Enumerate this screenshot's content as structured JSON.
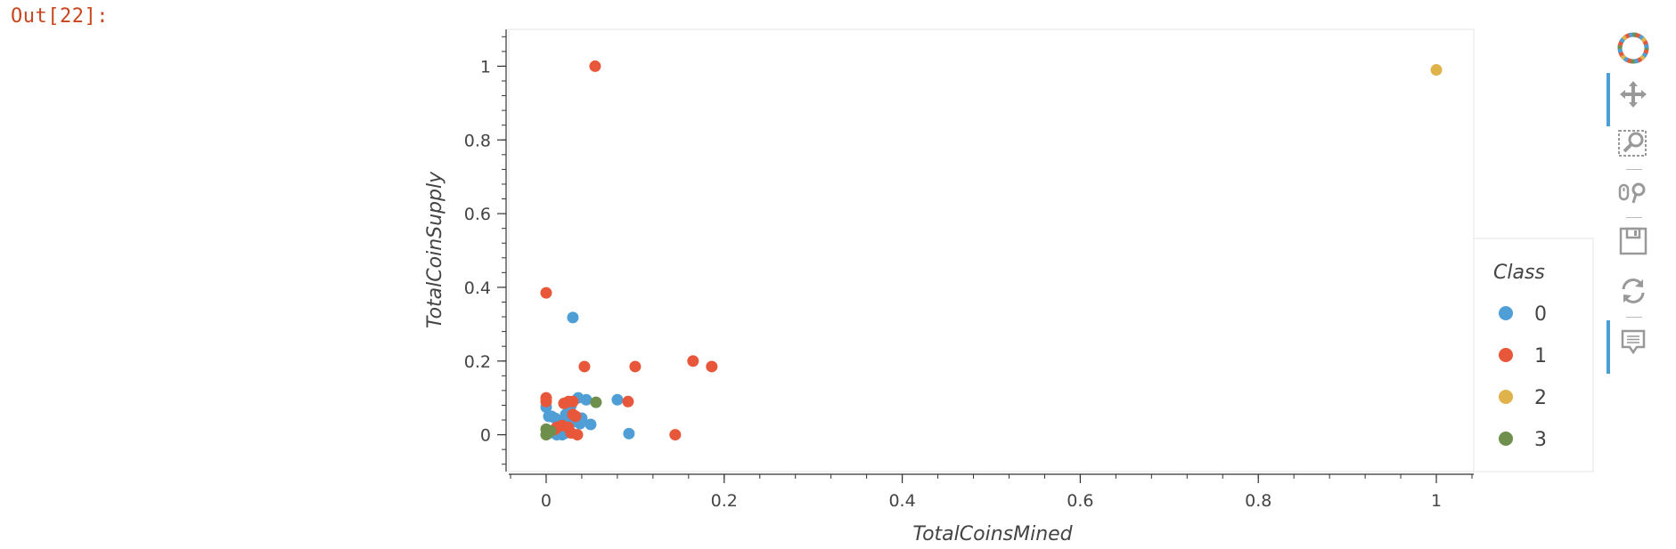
{
  "cell": {
    "prompt": "Out[22]:"
  },
  "toolbar": {
    "tools": [
      {
        "name": "bokeh-logo-icon",
        "active": false
      },
      {
        "name": "pan-icon",
        "active": true
      },
      {
        "name": "box-zoom-icon",
        "active": false
      },
      {
        "name": "wheel-zoom-icon",
        "active": false
      },
      {
        "name": "save-icon",
        "active": false
      },
      {
        "name": "reset-icon",
        "active": false
      },
      {
        "name": "hover-icon",
        "active": true
      }
    ]
  },
  "chart_data": {
    "type": "scatter",
    "xlabel": "TotalCoinsMined",
    "ylabel": "TotalCoinSupply",
    "xlim": [
      -0.042,
      1.042
    ],
    "ylim": [
      -0.1,
      1.1
    ],
    "xticks": [
      0,
      0.2,
      0.4,
      0.6,
      0.8,
      1
    ],
    "yticks": [
      0,
      0.2,
      0.4,
      0.6,
      0.8,
      1
    ],
    "xtick_labels": [
      "0",
      "0.2",
      "0.4",
      "0.6",
      "0.8",
      "1"
    ],
    "ytick_labels": [
      "0",
      "0.2",
      "0.4",
      "0.6",
      "0.8",
      "1"
    ],
    "grid": false,
    "legend": {
      "title": "Class",
      "placement": "right"
    },
    "series": [
      {
        "name": "0",
        "color": "#4f9fd6",
        "x": [
          0.0,
          0.003,
          0.006,
          0.01,
          0.013,
          0.016,
          0.02,
          0.022,
          0.025,
          0.028,
          0.03,
          0.033,
          0.036,
          0.04,
          0.045,
          0.05,
          0.08,
          0.093,
          0.03,
          0.004,
          0.012,
          0.018,
          0.03,
          0.038,
          0.01,
          0.022
        ],
        "y": [
          0.075,
          0.05,
          0.05,
          0.045,
          0.02,
          0.03,
          0.04,
          0.055,
          0.06,
          0.08,
          0.09,
          0.05,
          0.1,
          0.045,
          0.095,
          0.028,
          0.095,
          0.003,
          0.318,
          0.005,
          0.0,
          0.0,
          0.035,
          0.03,
          0.015,
          0.005
        ]
      },
      {
        "name": "1",
        "color": "#e8573a",
        "x": [
          0.055,
          0.0,
          0.043,
          0.1,
          0.165,
          0.186,
          0.0,
          0.0,
          0.02,
          0.025,
          0.03,
          0.033,
          0.092,
          0.145,
          0.012,
          0.018,
          0.025,
          0.03,
          0.035,
          0.005,
          0.01,
          0.028
        ],
        "y": [
          1.0,
          0.385,
          0.185,
          0.185,
          0.2,
          0.185,
          0.1,
          0.09,
          0.085,
          0.09,
          0.09,
          0.05,
          0.09,
          0.0,
          0.02,
          0.025,
          0.02,
          0.055,
          0.0,
          0.01,
          0.015,
          0.005
        ]
      },
      {
        "name": "2",
        "color": "#e0b24a",
        "x": [
          1.0
        ],
        "y": [
          0.99
        ]
      },
      {
        "name": "3",
        "color": "#6f8f4c",
        "x": [
          0.056,
          0.0,
          0.0,
          0.002,
          0.005
        ],
        "y": [
          0.088,
          0.015,
          0.0,
          0.005,
          0.01
        ]
      }
    ]
  }
}
